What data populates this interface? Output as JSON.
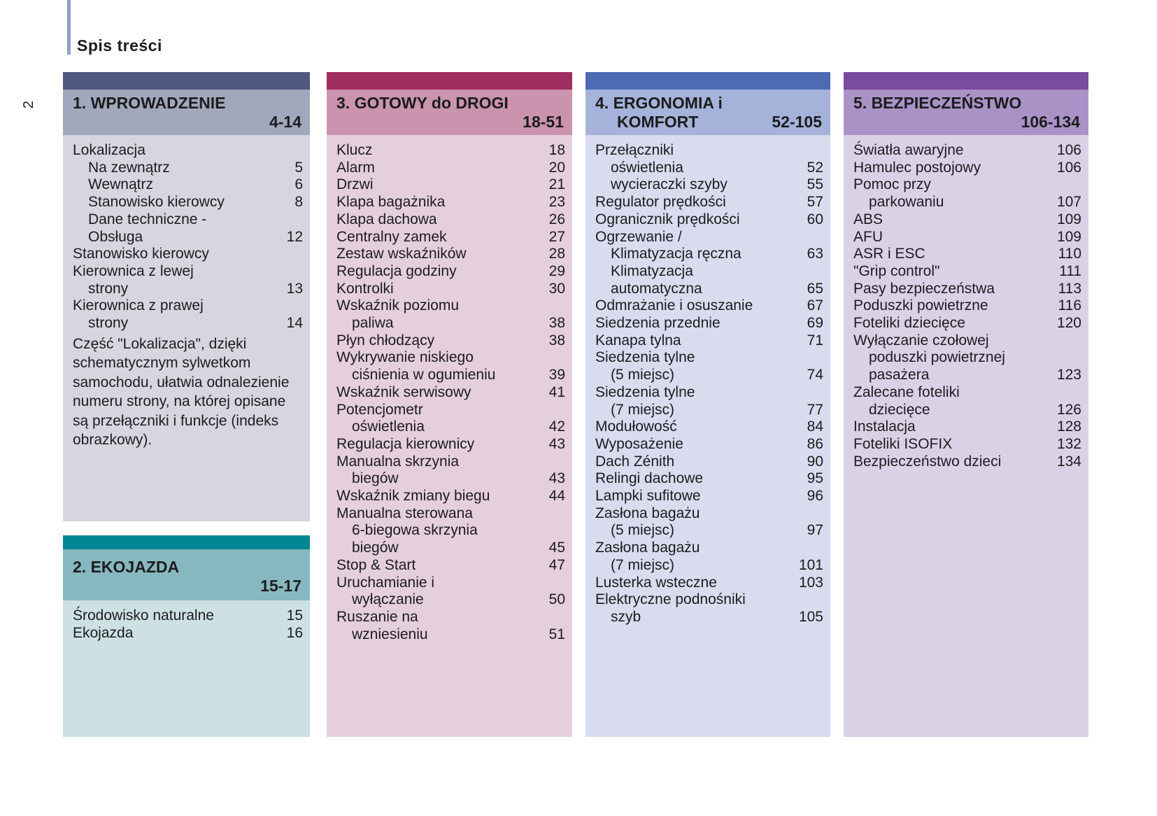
{
  "page": {
    "header_title": "Spis treści",
    "side_page_number": "2"
  },
  "colors": {
    "accent_line": "#8ba2c4",
    "text": "#1c1c1e",
    "background": "#ffffff"
  },
  "sections": [
    {
      "id": "wprowadzenie",
      "column": 1,
      "title_line1": "1. WPROWADZENIE",
      "title_line2": "",
      "range": "4-14",
      "colors": {
        "bar": "#4d5a7d",
        "header": "#a2a8bc",
        "body": "#d7d6e0"
      },
      "items": [
        {
          "label": "Lokalizacja",
          "indent": 0,
          "page": ""
        },
        {
          "label": "Na zewnątrz",
          "indent": 1,
          "page": "5"
        },
        {
          "label": "Wewnątrz",
          "indent": 1,
          "page": "6"
        },
        {
          "label": "Stanowisko kierowcy",
          "indent": 1,
          "page": "8"
        },
        {
          "label": "Dane techniczne -",
          "indent": 1,
          "page": ""
        },
        {
          "label": "Obsługa",
          "indent": 1,
          "page": "12"
        },
        {
          "label": "Stanowisko kierowcy",
          "indent": 0,
          "page": ""
        },
        {
          "label": "Kierownica z lewej",
          "indent": 0,
          "page": ""
        },
        {
          "label": "strony",
          "indent": 1,
          "page": "13"
        },
        {
          "label": "Kierownica z prawej",
          "indent": 0,
          "page": ""
        },
        {
          "label": "strony",
          "indent": 1,
          "page": "14"
        }
      ],
      "paragraph": "Część \"Lokalizacja\", dzięki schematycznym sylwetkom samochodu, ułatwia odnalezienie numeru strony, na której opisane są przełączniki i funkcje (indeks obrazkowy)."
    },
    {
      "id": "ekojazda",
      "column": 1,
      "title_line1": "2. EKOJAZDA",
      "title_line2": "",
      "range": "15-17",
      "colors": {
        "bar": "#008795",
        "header": "#87b8bf",
        "body": "#cde1e3"
      },
      "items": [
        {
          "label": "Środowisko naturalne",
          "indent": 0,
          "page": "15"
        },
        {
          "label": "Ekojazda",
          "indent": 0,
          "page": "16"
        }
      ]
    },
    {
      "id": "gotowy",
      "column": 2,
      "title_line1": "3. GOTOWY do DROGI",
      "title_line2": "",
      "range": "18-51",
      "colors": {
        "bar": "#a02e5e",
        "header": "#ca93ae",
        "body": "#e5cfdc"
      },
      "items": [
        {
          "label": "Klucz",
          "indent": 0,
          "page": "18"
        },
        {
          "label": "Alarm",
          "indent": 0,
          "page": "20"
        },
        {
          "label": "Drzwi",
          "indent": 0,
          "page": "21"
        },
        {
          "label": "Klapa bagażnika",
          "indent": 0,
          "page": "23"
        },
        {
          "label": "Klapa dachowa",
          "indent": 0,
          "page": "26"
        },
        {
          "label": "Centralny zamek",
          "indent": 0,
          "page": "27"
        },
        {
          "label": "Zestaw wskaźników",
          "indent": 0,
          "page": "28"
        },
        {
          "label": "Regulacja godziny",
          "indent": 0,
          "page": "29"
        },
        {
          "label": "Kontrolki",
          "indent": 0,
          "page": "30"
        },
        {
          "label": "Wskaźnik poziomu",
          "indent": 0,
          "page": ""
        },
        {
          "label": "paliwa",
          "indent": 1,
          "page": "38"
        },
        {
          "label": "Płyn chłodzący",
          "indent": 0,
          "page": "38"
        },
        {
          "label": "Wykrywanie niskiego",
          "indent": 0,
          "page": ""
        },
        {
          "label": "ciśnienia w ogumieniu",
          "indent": 1,
          "page": "39"
        },
        {
          "label": "Wskaźnik serwisowy",
          "indent": 0,
          "page": "41"
        },
        {
          "label": "Potencjometr",
          "indent": 0,
          "page": ""
        },
        {
          "label": "oświetlenia",
          "indent": 1,
          "page": "42"
        },
        {
          "label": "Regulacja kierownicy",
          "indent": 0,
          "page": "43"
        },
        {
          "label": "Manualna skrzynia",
          "indent": 0,
          "page": ""
        },
        {
          "label": "biegów",
          "indent": 1,
          "page": "43"
        },
        {
          "label": "Wskaźnik zmiany biegu",
          "indent": 0,
          "page": "44"
        },
        {
          "label": "Manualna sterowana",
          "indent": 0,
          "page": ""
        },
        {
          "label": "6-biegowa skrzynia",
          "indent": 1,
          "page": ""
        },
        {
          "label": "biegów",
          "indent": 1,
          "page": "45"
        },
        {
          "label": "Stop & Start",
          "indent": 0,
          "page": "47"
        },
        {
          "label": "Uruchamianie i",
          "indent": 0,
          "page": ""
        },
        {
          "label": "wyłączanie",
          "indent": 1,
          "page": "50"
        },
        {
          "label": "Ruszanie na",
          "indent": 0,
          "page": ""
        },
        {
          "label": "wzniesieniu",
          "indent": 1,
          "page": "51"
        }
      ]
    },
    {
      "id": "ergonomia",
      "column": 3,
      "title_line1": "4. ERGONOMIA i",
      "title_line2": "KOMFORT",
      "range": "52-105",
      "colors": {
        "bar": "#4b6cb4",
        "header": "#a5b3da",
        "body": "#d8dcee"
      },
      "items": [
        {
          "label": "Przełączniki",
          "indent": 0,
          "page": ""
        },
        {
          "label": "oświetlenia",
          "indent": 1,
          "page": "52"
        },
        {
          "label": "wycieraczki szyby",
          "indent": 1,
          "page": "55"
        },
        {
          "label": "Regulator prędkości",
          "indent": 0,
          "page": "57"
        },
        {
          "label": "Ogranicznik prędkości",
          "indent": 0,
          "page": "60"
        },
        {
          "label": "Ogrzewanie /",
          "indent": 0,
          "page": ""
        },
        {
          "label": "Klimatyzacja ręczna",
          "indent": 1,
          "page": "63"
        },
        {
          "label": "Klimatyzacja",
          "indent": 1,
          "page": ""
        },
        {
          "label": "automatyczna",
          "indent": 1,
          "page": "65"
        },
        {
          "label": "Odmrażanie i osuszanie",
          "indent": 0,
          "page": "67"
        },
        {
          "label": "Siedzenia przednie",
          "indent": 0,
          "page": "69"
        },
        {
          "label": "Kanapa tylna",
          "indent": 0,
          "page": "71"
        },
        {
          "label": "Siedzenia tylne",
          "indent": 0,
          "page": ""
        },
        {
          "label": "(5 miejsc)",
          "indent": 1,
          "page": "74"
        },
        {
          "label": "Siedzenia tylne",
          "indent": 0,
          "page": ""
        },
        {
          "label": "(7 miejsc)",
          "indent": 1,
          "page": "77"
        },
        {
          "label": "Modułowość",
          "indent": 0,
          "page": "84"
        },
        {
          "label": "Wyposażenie",
          "indent": 0,
          "page": "86"
        },
        {
          "label": "Dach Zénith",
          "indent": 0,
          "page": "90"
        },
        {
          "label": "Relingi dachowe",
          "indent": 0,
          "page": "95"
        },
        {
          "label": "Lampki sufitowe",
          "indent": 0,
          "page": "96"
        },
        {
          "label": "Zasłona bagażu",
          "indent": 0,
          "page": ""
        },
        {
          "label": "(5 miejsc)",
          "indent": 1,
          "page": "97"
        },
        {
          "label": "Zasłona bagażu",
          "indent": 0,
          "page": ""
        },
        {
          "label": "(7 miejsc)",
          "indent": 1,
          "page": "101"
        },
        {
          "label": "Lusterka wsteczne",
          "indent": 0,
          "page": "103"
        },
        {
          "label": "Elektryczne podnośniki",
          "indent": 0,
          "page": ""
        },
        {
          "label": "szyb",
          "indent": 1,
          "page": "105"
        }
      ]
    },
    {
      "id": "bezpieczenstwo",
      "column": 4,
      "title_line1": "5. BEZPIECZEŃSTWO",
      "title_line2": "",
      "range": "106-134",
      "colors": {
        "bar": "#7b4aa1",
        "header": "#aa92c6",
        "body": "#dbd1e7"
      },
      "items": [
        {
          "label": "Światła awaryjne",
          "indent": 0,
          "page": "106"
        },
        {
          "label": "Hamulec postojowy",
          "indent": 0,
          "page": "106"
        },
        {
          "label": "Pomoc przy",
          "indent": 0,
          "page": ""
        },
        {
          "label": "parkowaniu",
          "indent": 1,
          "page": "107"
        },
        {
          "label": "ABS",
          "indent": 0,
          "page": "109"
        },
        {
          "label": "AFU",
          "indent": 0,
          "page": "109"
        },
        {
          "label": "ASR i ESC",
          "indent": 0,
          "page": "110"
        },
        {
          "label": "\"Grip control\"",
          "indent": 0,
          "page": "111"
        },
        {
          "label": "Pasy bezpieczeństwa",
          "indent": 0,
          "page": "113"
        },
        {
          "label": "Poduszki powietrzne",
          "indent": 0,
          "page": "116"
        },
        {
          "label": "Foteliki dziecięce",
          "indent": 0,
          "page": "120"
        },
        {
          "label": "Wyłączanie czołowej",
          "indent": 0,
          "page": ""
        },
        {
          "label": "poduszki powietrznej",
          "indent": 1,
          "page": ""
        },
        {
          "label": "pasażera",
          "indent": 1,
          "page": "123"
        },
        {
          "label": "Zalecane foteliki",
          "indent": 0,
          "page": ""
        },
        {
          "label": "dziecięce",
          "indent": 1,
          "page": "126"
        },
        {
          "label": "Instalacja",
          "indent": 0,
          "page": "128"
        },
        {
          "label": "Foteliki ISOFIX",
          "indent": 0,
          "page": "132"
        },
        {
          "label": "Bezpieczeństwo dzieci",
          "indent": 0,
          "page": "134"
        }
      ]
    }
  ]
}
